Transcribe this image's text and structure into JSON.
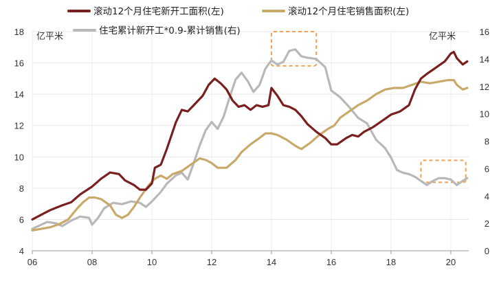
{
  "chart_data": {
    "type": "line",
    "left_unit": "亿平米",
    "right_unit": "亿平米",
    "x_ticks": [
      "06",
      "08",
      "10",
      "12",
      "14",
      "16",
      "18",
      "20"
    ],
    "x_range": [
      2006,
      2020.6
    ],
    "y_left": {
      "range": [
        4,
        18
      ],
      "ticks": [
        "4",
        "6",
        "8",
        "10",
        "12",
        "14",
        "16",
        "18"
      ]
    },
    "y_right": {
      "range": [
        0,
        16
      ],
      "ticks": [
        "0",
        "2",
        "4",
        "6",
        "8",
        "10",
        "12",
        "14",
        "16"
      ]
    },
    "grid": true,
    "legend_position": "top",
    "series": [
      {
        "name": "滚动12个月住宅新开工面积(左)",
        "axis": "left",
        "color": "#7a1f1f",
        "points": [
          [
            2006.0,
            6.0
          ],
          [
            2006.3,
            6.3
          ],
          [
            2006.6,
            6.6
          ],
          [
            2007.0,
            6.9
          ],
          [
            2007.3,
            7.1
          ],
          [
            2007.6,
            7.6
          ],
          [
            2008.0,
            8.1
          ],
          [
            2008.3,
            8.6
          ],
          [
            2008.6,
            9.0
          ],
          [
            2008.9,
            8.9
          ],
          [
            2009.1,
            8.5
          ],
          [
            2009.4,
            8.2
          ],
          [
            2009.6,
            7.9
          ],
          [
            2009.8,
            7.9
          ],
          [
            2010.0,
            8.3
          ],
          [
            2010.1,
            9.3
          ],
          [
            2010.3,
            9.5
          ],
          [
            2010.5,
            10.5
          ],
          [
            2010.8,
            12.2
          ],
          [
            2011.0,
            13.0
          ],
          [
            2011.2,
            12.9
          ],
          [
            2011.4,
            13.3
          ],
          [
            2011.7,
            13.9
          ],
          [
            2011.9,
            14.6
          ],
          [
            2012.1,
            15.0
          ],
          [
            2012.3,
            14.7
          ],
          [
            2012.5,
            14.3
          ],
          [
            2012.7,
            13.6
          ],
          [
            2012.9,
            13.2
          ],
          [
            2013.1,
            13.3
          ],
          [
            2013.3,
            13.0
          ],
          [
            2013.5,
            13.3
          ],
          [
            2013.7,
            13.2
          ],
          [
            2013.9,
            13.3
          ],
          [
            2014.0,
            14.4
          ],
          [
            2014.2,
            13.9
          ],
          [
            2014.4,
            13.3
          ],
          [
            2014.6,
            13.2
          ],
          [
            2014.8,
            13.0
          ],
          [
            2015.0,
            12.6
          ],
          [
            2015.2,
            12.1
          ],
          [
            2015.5,
            11.6
          ],
          [
            2015.8,
            11.2
          ],
          [
            2016.0,
            10.8
          ],
          [
            2016.2,
            10.8
          ],
          [
            2016.5,
            11.2
          ],
          [
            2016.7,
            11.4
          ],
          [
            2016.9,
            11.3
          ],
          [
            2017.1,
            11.6
          ],
          [
            2017.4,
            11.9
          ],
          [
            2017.7,
            12.3
          ],
          [
            2018.0,
            12.7
          ],
          [
            2018.3,
            12.9
          ],
          [
            2018.6,
            13.3
          ],
          [
            2018.8,
            14.3
          ],
          [
            2019.0,
            15.0
          ],
          [
            2019.2,
            15.3
          ],
          [
            2019.5,
            15.7
          ],
          [
            2019.8,
            16.1
          ],
          [
            2020.0,
            16.6
          ],
          [
            2020.1,
            16.7
          ],
          [
            2020.2,
            16.3
          ],
          [
            2020.4,
            15.9
          ],
          [
            2020.55,
            16.1
          ]
        ]
      },
      {
        "name": "滚动12个月住宅销售面积(左)",
        "axis": "left",
        "color": "#c8a96a",
        "points": [
          [
            2006.0,
            5.3
          ],
          [
            2006.3,
            5.4
          ],
          [
            2006.6,
            5.5
          ],
          [
            2006.9,
            5.7
          ],
          [
            2007.2,
            6.0
          ],
          [
            2007.5,
            6.7
          ],
          [
            2007.7,
            7.1
          ],
          [
            2007.9,
            7.4
          ],
          [
            2008.1,
            7.4
          ],
          [
            2008.3,
            7.3
          ],
          [
            2008.6,
            6.9
          ],
          [
            2008.8,
            6.3
          ],
          [
            2009.0,
            6.1
          ],
          [
            2009.2,
            6.3
          ],
          [
            2009.4,
            6.8
          ],
          [
            2009.6,
            7.4
          ],
          [
            2009.9,
            8.2
          ],
          [
            2010.1,
            8.6
          ],
          [
            2010.3,
            8.8
          ],
          [
            2010.5,
            8.6
          ],
          [
            2010.7,
            8.9
          ],
          [
            2011.0,
            9.1
          ],
          [
            2011.3,
            9.5
          ],
          [
            2011.6,
            9.9
          ],
          [
            2011.8,
            9.8
          ],
          [
            2012.0,
            9.6
          ],
          [
            2012.2,
            9.3
          ],
          [
            2012.5,
            9.3
          ],
          [
            2012.8,
            9.8
          ],
          [
            2013.0,
            10.3
          ],
          [
            2013.3,
            10.8
          ],
          [
            2013.6,
            11.2
          ],
          [
            2013.8,
            11.5
          ],
          [
            2014.0,
            11.5
          ],
          [
            2014.2,
            11.4
          ],
          [
            2014.5,
            11.1
          ],
          [
            2014.8,
            10.7
          ],
          [
            2015.0,
            10.5
          ],
          [
            2015.3,
            10.9
          ],
          [
            2015.6,
            11.4
          ],
          [
            2015.9,
            11.8
          ],
          [
            2016.1,
            12.0
          ],
          [
            2016.3,
            12.5
          ],
          [
            2016.6,
            12.9
          ],
          [
            2016.9,
            13.3
          ],
          [
            2017.2,
            13.6
          ],
          [
            2017.5,
            14.0
          ],
          [
            2017.8,
            14.3
          ],
          [
            2018.1,
            14.4
          ],
          [
            2018.4,
            14.4
          ],
          [
            2018.7,
            14.6
          ],
          [
            2019.0,
            14.8
          ],
          [
            2019.3,
            14.7
          ],
          [
            2019.6,
            14.8
          ],
          [
            2019.9,
            14.9
          ],
          [
            2020.1,
            14.9
          ],
          [
            2020.2,
            14.6
          ],
          [
            2020.4,
            14.3
          ],
          [
            2020.55,
            14.4
          ]
        ]
      },
      {
        "name": "住宅累计新开工*0.9-累计销售(右)",
        "axis": "right",
        "color": "#b8b8b8",
        "points": [
          [
            2006.0,
            1.6
          ],
          [
            2006.2,
            1.8
          ],
          [
            2006.5,
            2.1
          ],
          [
            2006.8,
            2.0
          ],
          [
            2007.0,
            1.8
          ],
          [
            2007.3,
            2.2
          ],
          [
            2007.6,
            2.5
          ],
          [
            2007.9,
            2.4
          ],
          [
            2008.0,
            1.9
          ],
          [
            2008.2,
            2.4
          ],
          [
            2008.4,
            3.1
          ],
          [
            2008.7,
            3.5
          ],
          [
            2009.0,
            3.4
          ],
          [
            2009.3,
            3.6
          ],
          [
            2009.6,
            3.5
          ],
          [
            2009.8,
            3.2
          ],
          [
            2010.0,
            3.6
          ],
          [
            2010.3,
            4.3
          ],
          [
            2010.5,
            4.9
          ],
          [
            2010.8,
            5.5
          ],
          [
            2011.0,
            5.7
          ],
          [
            2011.2,
            5.2
          ],
          [
            2011.4,
            6.4
          ],
          [
            2011.6,
            7.7
          ],
          [
            2011.8,
            8.8
          ],
          [
            2012.0,
            9.4
          ],
          [
            2012.2,
            8.9
          ],
          [
            2012.4,
            9.8
          ],
          [
            2012.6,
            11.2
          ],
          [
            2012.8,
            12.5
          ],
          [
            2013.0,
            13.0
          ],
          [
            2013.2,
            12.4
          ],
          [
            2013.4,
            11.6
          ],
          [
            2013.6,
            12.1
          ],
          [
            2013.8,
            13.3
          ],
          [
            2014.0,
            13.9
          ],
          [
            2014.2,
            13.6
          ],
          [
            2014.4,
            13.8
          ],
          [
            2014.6,
            14.6
          ],
          [
            2014.8,
            14.7
          ],
          [
            2015.0,
            14.2
          ],
          [
            2015.2,
            14.1
          ],
          [
            2015.5,
            14.0
          ],
          [
            2015.8,
            13.4
          ],
          [
            2016.0,
            11.7
          ],
          [
            2016.3,
            11.2
          ],
          [
            2016.6,
            10.5
          ],
          [
            2016.9,
            9.7
          ],
          [
            2017.2,
            9.3
          ],
          [
            2017.5,
            8.1
          ],
          [
            2017.8,
            7.5
          ],
          [
            2018.0,
            6.8
          ],
          [
            2018.2,
            5.9
          ],
          [
            2018.4,
            5.7
          ],
          [
            2018.6,
            5.6
          ],
          [
            2018.8,
            5.4
          ],
          [
            2019.0,
            5.1
          ],
          [
            2019.2,
            4.8
          ],
          [
            2019.4,
            5.1
          ],
          [
            2019.6,
            5.3
          ],
          [
            2019.8,
            5.3
          ],
          [
            2020.0,
            5.2
          ],
          [
            2020.2,
            4.8
          ],
          [
            2020.4,
            5.1
          ],
          [
            2020.55,
            5.3
          ]
        ]
      }
    ],
    "highlight_boxes": [
      {
        "axis": "right",
        "x": [
          2014.0,
          2015.5
        ],
        "y": [
          13.5,
          16.0
        ]
      },
      {
        "axis": "right",
        "x": [
          2019.0,
          2020.5
        ],
        "y": [
          5.0,
          6.6
        ]
      }
    ]
  }
}
